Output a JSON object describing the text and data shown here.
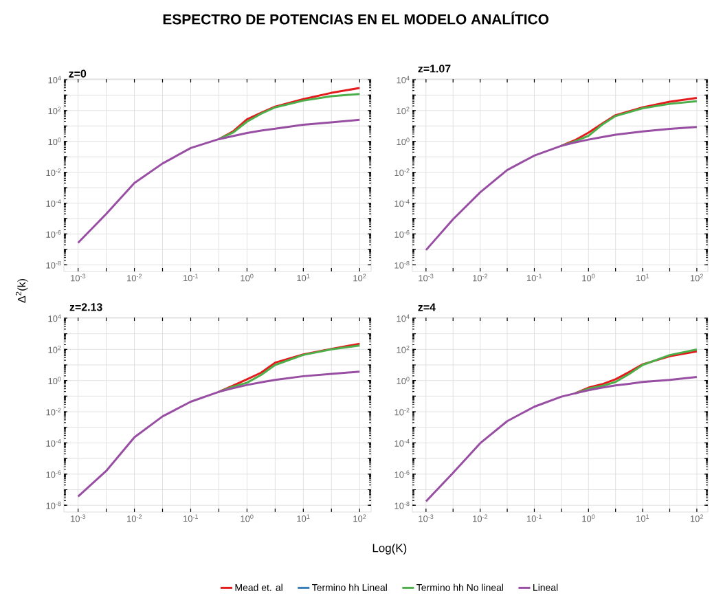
{
  "chart_data": [
    {
      "type": "line",
      "title": "ESPECTRO DE POTENCIAS EN EL MODELO ANALÍTICO",
      "subtitle": "z=0",
      "ylabel": "Δ$^{2}$(k)",
      "log": "xy",
      "grid": true,
      "xlim": [
        0.00056,
        160
      ],
      "ylim": [
        3.7e-09,
        11000
      ],
      "xticks": [
        {
          "value": 0.001,
          "label": "10$^{-3}$"
        },
        {
          "value": 0.00316,
          "label": null
        },
        {
          "value": 0.01,
          "label": "10$^{-2}$"
        },
        {
          "value": 0.0316,
          "label": null
        },
        {
          "value": 0.1,
          "label": "10$^{-1}$"
        },
        {
          "value": 0.316,
          "label": null
        },
        {
          "value": 1,
          "label": "10$^{0}$"
        },
        {
          "value": 3.16,
          "label": null
        },
        {
          "value": 10,
          "label": "10$^{1}$"
        },
        {
          "value": 31.6,
          "label": null
        },
        {
          "value": 100,
          "label": "10$^{2}$"
        }
      ],
      "yticks": [
        {
          "value": 1e-08,
          "label": "10$^{-8}$"
        },
        {
          "value": 1e-07,
          "label": null
        },
        {
          "value": 1e-06,
          "label": "10$^{-6}$"
        },
        {
          "value": 1e-05,
          "label": null
        },
        {
          "value": 0.0001,
          "label": "10$^{-4}$"
        },
        {
          "value": 0.001,
          "label": null
        },
        {
          "value": 0.01,
          "label": "10$^{-2}$"
        },
        {
          "value": 0.1,
          "label": null
        },
        {
          "value": 1,
          "label": "10$^{0}$"
        },
        {
          "value": 10,
          "label": null
        },
        {
          "value": 100,
          "label": "10$^{2}$"
        },
        {
          "value": 1000,
          "label": null
        },
        {
          "value": 10000,
          "label": "10$^{4}$"
        }
      ],
      "x": [
        0.001,
        0.00316,
        0.01,
        0.0316,
        0.1,
        0.316,
        0.562,
        1,
        1.78,
        3.16,
        10,
        31.6,
        100
      ],
      "series": [
        {
          "color": "#e41a1c",
          "values": [
            null,
            null,
            null,
            null,
            null,
            1.4,
            4.4,
            27,
            72,
            180,
            550,
            1400,
            2900
          ]
        },
        {
          "color": "#4daf4a",
          "values": [
            null,
            null,
            null,
            null,
            null,
            1.4,
            3.7,
            19,
            62,
            160,
            440,
            850,
            1170
          ]
        },
        {
          "color": "#984ea3",
          "values": [
            2.7e-07,
            2e-05,
            0.002,
            0.037,
            0.37,
            1.4,
            2.2,
            3.5,
            5,
            6.7,
            12,
            17,
            25
          ]
        }
      ]
    },
    {
      "type": "line",
      "title": "z=1.07",
      "log": "xy",
      "grid": true,
      "xlim": [
        0.00056,
        160
      ],
      "ylim": [
        3.7e-09,
        11000
      ],
      "xticks": [
        {
          "value": 0.001,
          "label": "10$^{-3}$"
        },
        {
          "value": 0.00316,
          "label": null
        },
        {
          "value": 0.01,
          "label": "10$^{-2}$"
        },
        {
          "value": 0.0316,
          "label": null
        },
        {
          "value": 0.1,
          "label": "10$^{-1}$"
        },
        {
          "value": 0.316,
          "label": null
        },
        {
          "value": 1,
          "label": "10$^{0}$"
        },
        {
          "value": 3.16,
          "label": null
        },
        {
          "value": 10,
          "label": "10$^{1}$"
        },
        {
          "value": 31.6,
          "label": null
        },
        {
          "value": 100,
          "label": "10$^{2}$"
        }
      ],
      "yticks": [
        {
          "value": 1e-08,
          "label": "10$^{-8}$"
        },
        {
          "value": 1e-07,
          "label": null
        },
        {
          "value": 1e-06,
          "label": "10$^{-6}$"
        },
        {
          "value": 1e-05,
          "label": null
        },
        {
          "value": 0.0001,
          "label": "10$^{-4}$"
        },
        {
          "value": 0.001,
          "label": null
        },
        {
          "value": 0.01,
          "label": "10$^{-2}$"
        },
        {
          "value": 0.1,
          "label": null
        },
        {
          "value": 1,
          "label": "10$^{0}$"
        },
        {
          "value": 10,
          "label": null
        },
        {
          "value": 100,
          "label": "10$^{2}$"
        },
        {
          "value": 1000,
          "label": null
        },
        {
          "value": 10000,
          "label": "10$^{4}$"
        }
      ],
      "x": [
        0.001,
        0.00316,
        0.01,
        0.0316,
        0.1,
        0.316,
        0.562,
        1,
        1.78,
        3.16,
        10,
        31.6,
        100
      ],
      "series": [
        {
          "color": "#e41a1c",
          "values": [
            null,
            null,
            null,
            null,
            null,
            0.52,
            1.2,
            3.7,
            14,
            50,
            160,
            370,
            650
          ]
        },
        {
          "color": "#4daf4a",
          "values": [
            null,
            null,
            null,
            null,
            null,
            0.52,
            1,
            2.3,
            12,
            44,
            140,
            270,
            400
          ]
        },
        {
          "color": "#984ea3",
          "values": [
            9e-08,
            9e-06,
            0.0005,
            0.014,
            0.12,
            0.52,
            0.85,
            1.3,
            1.9,
            2.7,
            4.4,
            6.5,
            8.5
          ]
        }
      ]
    },
    {
      "type": "line",
      "title": "z=2.13",
      "xlabel": "Log(K)",
      "log": "xy",
      "grid": true,
      "legend": "bottom",
      "xlim": [
        0.00056,
        160
      ],
      "ylim": [
        3.7e-09,
        11000
      ],
      "xticks": [
        {
          "value": 0.001,
          "label": "10$^{-3}$"
        },
        {
          "value": 0.00316,
          "label": null
        },
        {
          "value": 0.01,
          "label": "10$^{-2}$"
        },
        {
          "value": 0.0316,
          "label": null
        },
        {
          "value": 0.1,
          "label": "10$^{-1}$"
        },
        {
          "value": 0.316,
          "label": null
        },
        {
          "value": 1,
          "label": "10$^{0}$"
        },
        {
          "value": 3.16,
          "label": null
        },
        {
          "value": 10,
          "label": "10$^{1}$"
        },
        {
          "value": 31.6,
          "label": null
        },
        {
          "value": 100,
          "label": "10$^{2}$"
        }
      ],
      "yticks": [
        {
          "value": 1e-08,
          "label": "10$^{-8}$"
        },
        {
          "value": 1e-07,
          "label": null
        },
        {
          "value": 1e-06,
          "label": "10$^{-6}$"
        },
        {
          "value": 1e-05,
          "label": null
        },
        {
          "value": 0.0001,
          "label": "10$^{-4}$"
        },
        {
          "value": 0.001,
          "label": null
        },
        {
          "value": 0.01,
          "label": "10$^{-2}$"
        },
        {
          "value": 0.1,
          "label": null
        },
        {
          "value": 1,
          "label": "10$^{0}$"
        },
        {
          "value": 10,
          "label": null
        },
        {
          "value": 100,
          "label": "10$^{2}$"
        },
        {
          "value": 1000,
          "label": null
        },
        {
          "value": 10000,
          "label": "10$^{4}$"
        }
      ],
      "x": [
        0.001,
        0.00316,
        0.01,
        0.0316,
        0.1,
        0.316,
        0.562,
        1,
        1.78,
        3.16,
        10,
        31.6,
        100
      ],
      "series": [
        {
          "name": "Mead et. al",
          "color": "#e41a1c",
          "values": [
            null,
            null,
            null,
            null,
            null,
            0.19,
            0.47,
            1.2,
            3.2,
            14,
            47,
            107,
            230
          ]
        },
        {
          "name": "Termino hh Lineal",
          "color": "#377eb8",
          "values": [
            null,
            null,
            null,
            null,
            null,
            null,
            null,
            null,
            null,
            null,
            null,
            null,
            null
          ]
        },
        {
          "name": "Termino hh No lineal",
          "color": "#4daf4a",
          "values": [
            null,
            null,
            null,
            null,
            null,
            0.19,
            0.4,
            0.72,
            2.3,
            10,
            44,
            100,
            175
          ]
        },
        {
          "name": "Lineal",
          "color": "#984ea3",
          "values": [
            3.7e-08,
            1.6e-06,
            0.00023,
            0.005,
            0.044,
            0.19,
            0.32,
            0.52,
            0.77,
            1.1,
            1.9,
            2.7,
            3.7
          ]
        }
      ]
    },
    {
      "type": "line",
      "title": "z=4",
      "log": "xy",
      "grid": true,
      "xlim": [
        0.00056,
        160
      ],
      "ylim": [
        3.7e-09,
        11000
      ],
      "xticks": [
        {
          "value": 0.001,
          "label": "10$^{-3}$"
        },
        {
          "value": 0.00316,
          "label": null
        },
        {
          "value": 0.01,
          "label": "10$^{-2}$"
        },
        {
          "value": 0.0316,
          "label": null
        },
        {
          "value": 0.1,
          "label": "10$^{-1}$"
        },
        {
          "value": 0.316,
          "label": null
        },
        {
          "value": 1,
          "label": "10$^{0}$"
        },
        {
          "value": 3.16,
          "label": null
        },
        {
          "value": 10,
          "label": "10$^{1}$"
        },
        {
          "value": 31.6,
          "label": null
        },
        {
          "value": 100,
          "label": "10$^{2}$"
        }
      ],
      "yticks": [
        {
          "value": 1e-08,
          "label": "10$^{-8}$"
        },
        {
          "value": 1e-07,
          "label": null
        },
        {
          "value": 1e-06,
          "label": "10$^{-6}$"
        },
        {
          "value": 1e-05,
          "label": null
        },
        {
          "value": 0.0001,
          "label": "10$^{-4}$"
        },
        {
          "value": 0.001,
          "label": null
        },
        {
          "value": 0.01,
          "label": "10$^{-2}$"
        },
        {
          "value": 0.1,
          "label": null
        },
        {
          "value": 1,
          "label": "10$^{0}$"
        },
        {
          "value": 10,
          "label": null
        },
        {
          "value": 100,
          "label": "10$^{2}$"
        },
        {
          "value": 1000,
          "label": null
        },
        {
          "value": 10000,
          "label": "10$^{4}$"
        }
      ],
      "x": [
        0.001,
        0.00316,
        0.01,
        0.0316,
        0.1,
        0.316,
        0.562,
        1,
        1.78,
        3.16,
        5.62,
        10,
        31.6,
        100
      ],
      "series": [
        {
          "color": "#e41a1c",
          "values": [
            null,
            null,
            null,
            null,
            null,
            null,
            0.15,
            0.35,
            0.58,
            1.2,
            3.5,
            11,
            36,
            74
          ]
        },
        {
          "color": "#4daf4a",
          "values": [
            null,
            null,
            null,
            null,
            null,
            null,
            0.15,
            0.3,
            0.45,
            0.81,
            2.6,
            10,
            43,
            98
          ]
        },
        {
          "color": "#984ea3",
          "values": [
            1.8e-08,
            1.2e-06,
            9.5e-05,
            0.0025,
            0.021,
            0.093,
            0.15,
            0.24,
            0.35,
            0.49,
            0.62,
            0.81,
            1.1,
            1.7
          ]
        }
      ]
    }
  ]
}
